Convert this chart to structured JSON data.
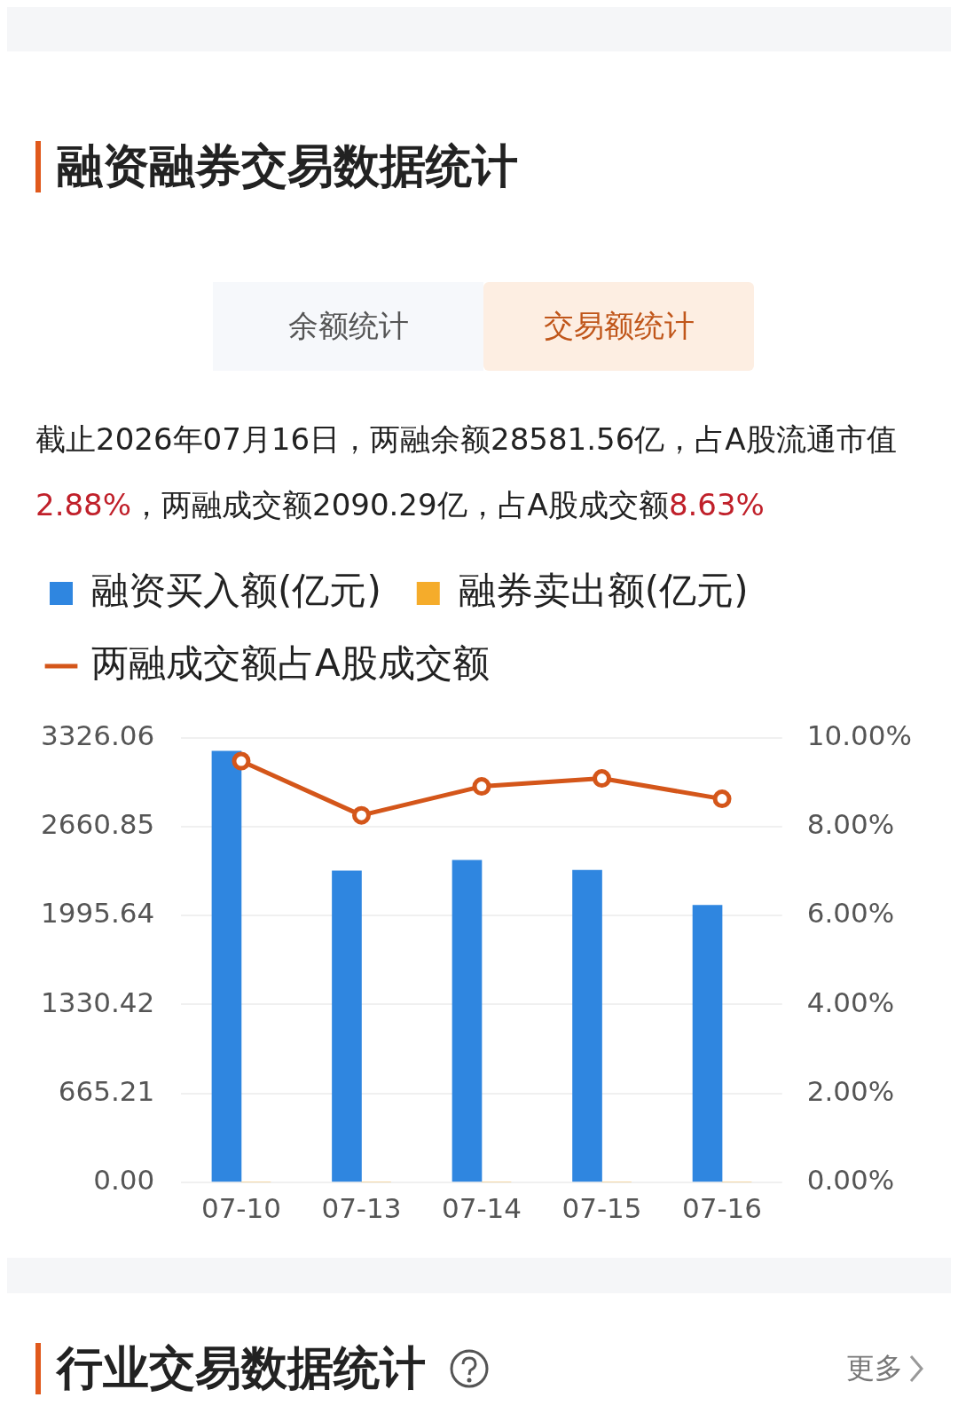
{
  "chart_data": {
    "type": "bar",
    "title": "融资融券交易数据统计",
    "annotations": [
      "余额统计",
      "交易额统计",
      "截止2026年07月16日，两融余额28581.56亿，占A股流通市值2.88%，两融成交额2090.29亿，占A股成交额8.63%",
      "行业交易数据统计",
      "更多"
    ],
    "categories": [
      "07-10",
      "07-13",
      "07-14",
      "07-15",
      "07-16"
    ],
    "series": [
      {
        "name": "融资买入额(亿元)",
        "color": "#2f86e0",
        "values": [
          3227,
          2331,
          2410,
          2336,
          2074
        ]
      },
      {
        "name": "融券卖出额(亿元)",
        "color": "#f5ac2b",
        "values": [
          0,
          0,
          0,
          0,
          0
        ]
      },
      {
        "name": "两融成交额占A股成交额",
        "type": "line",
        "axis": "y2",
        "color": "#d4561a",
        "values": [
          9.48,
          8.26,
          8.91,
          9.09,
          8.63
        ]
      }
    ],
    "ylim": [
      0,
      3326.06
    ],
    "yticks": [
      {
        "value": 0,
        "label": "0.00"
      },
      {
        "value": 665.21,
        "label": "665.21"
      },
      {
        "value": 1330.42,
        "label": "1330.42"
      },
      {
        "value": 1995.64,
        "label": "1995.64"
      },
      {
        "value": 2660.85,
        "label": "2660.85"
      },
      {
        "value": 3326.06,
        "label": "3326.06"
      }
    ],
    "y2lim": [
      0,
      10
    ],
    "y2ticks": [
      {
        "value": 0,
        "label": "0.00%"
      },
      {
        "value": 2,
        "label": "2.00%"
      },
      {
        "value": 4,
        "label": "4.00%"
      },
      {
        "value": 6,
        "label": "6.00%"
      },
      {
        "value": 8,
        "label": "8.00%"
      },
      {
        "value": 10,
        "label": "10.00%"
      }
    ],
    "grid": "y",
    "legend": "top left",
    "marker": "circle",
    "line_style": "solid"
  }
}
